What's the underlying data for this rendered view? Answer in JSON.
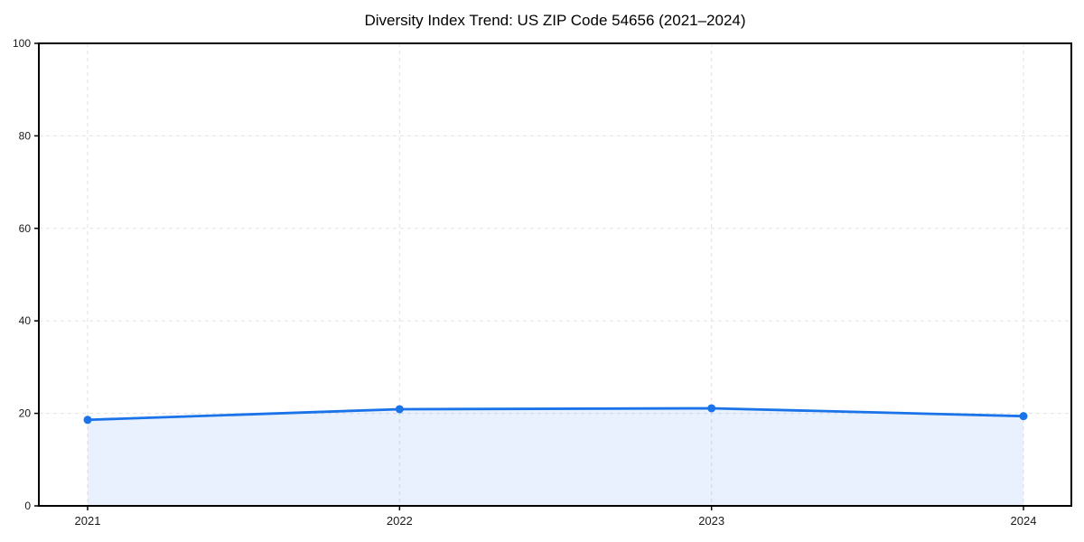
{
  "chart_data": {
    "type": "line",
    "title": "Diversity Index Trend: US ZIP Code 54656 (2021–2024)",
    "x": [
      2021,
      2022,
      2023,
      2024
    ],
    "xtick_labels": [
      "2021",
      "2022",
      "2023",
      "2024"
    ],
    "series": [
      {
        "name": "Diversity Index",
        "values": [
          18.6,
          20.9,
          21.1,
          19.4
        ]
      }
    ],
    "xlabel": "",
    "ylabel": "",
    "ylim": [
      0,
      100
    ],
    "yticks": [
      0,
      20,
      40,
      60,
      80,
      100
    ],
    "grid": true,
    "grid_style": "dashed",
    "legend_position": "none",
    "colors": {
      "line": "#1a73e8",
      "marker": "#1a73e8",
      "fill": "#1a73e8",
      "fill_opacity": 0.1,
      "grid": "#e2e2e2",
      "spine": "#000000",
      "tick_label": "#1a1a1a",
      "background": "#ffffff"
    }
  }
}
